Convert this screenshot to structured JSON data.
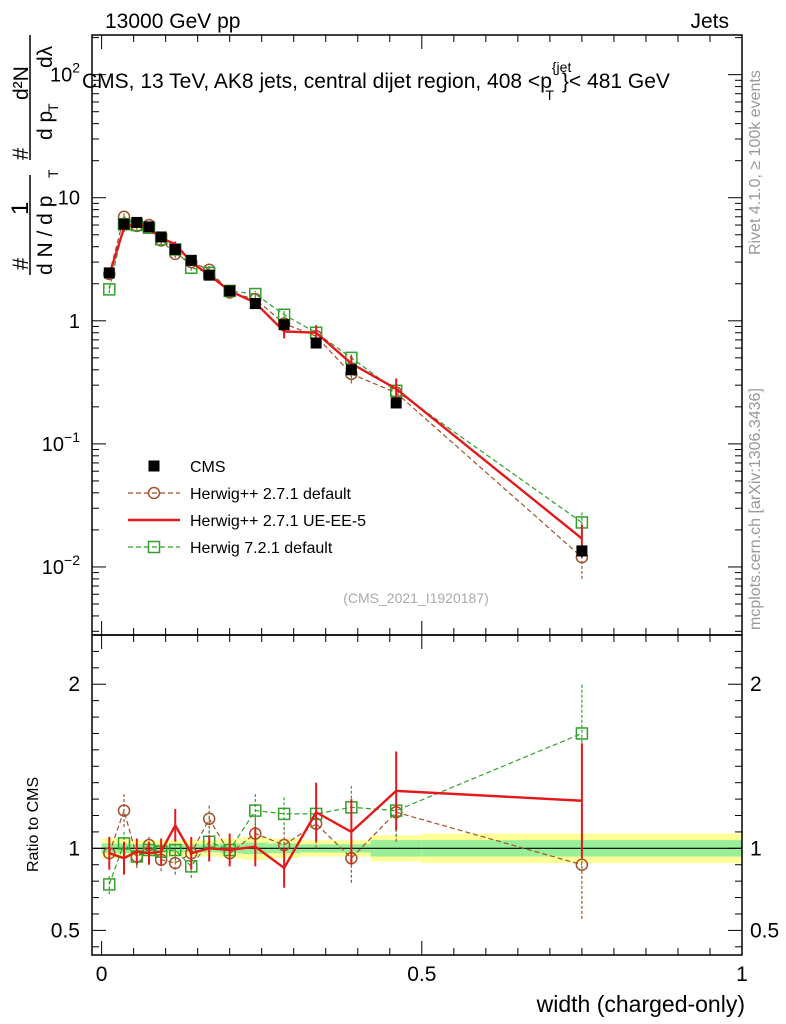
{
  "header": {
    "left": "13000 GeV pp",
    "right": "Jets"
  },
  "side_labels": {
    "rivet": "Rivet 4.1.0, ≥ 100k events",
    "mcplots": "mcplots.cern.ch [arXiv:1306.3436]"
  },
  "chart_data": {
    "type": "line",
    "title": "CMS, 13 TeV, AK8 jets, central dijet region, 408 <p",
    "title_sup": "{jet",
    "title_sub": "T",
    "title_tail": "}< 481 GeV",
    "analysis_id": "(CMS_2021_I1920187)",
    "xlabel": "width (charged-only)",
    "xlim": [
      -0.015,
      1.0
    ],
    "x_ticks": [
      {
        "value": 0,
        "label": "0"
      },
      {
        "value": 0.5,
        "label": "0.5"
      },
      {
        "value": 1,
        "label": "1"
      }
    ],
    "main_panel": {
      "yscale": "log",
      "ylim": [
        0.0028,
        210
      ],
      "ylabel_numerator": "1",
      "ylabel_denominator": "d N / d p",
      "ylabel_denominator_sub": "T",
      "ylabel_num2": "d²N",
      "ylabel_den2": "d p",
      "ylabel_den2_sub": "T",
      "ylabel_den2_tail": "dλ",
      "y_ticks": [
        {
          "value": 0.01,
          "base": "10",
          "exp": "−2"
        },
        {
          "value": 0.1,
          "base": "10",
          "exp": "−1"
        },
        {
          "value": 1,
          "base": "1",
          "exp": ""
        },
        {
          "value": 10,
          "base": "10",
          "exp": ""
        },
        {
          "value": 100,
          "base": "10",
          "exp": "2"
        }
      ]
    },
    "ratio_panel": {
      "ylabel": "Ratio to CMS",
      "ylim": [
        0.35,
        2.3
      ],
      "y_ticks": [
        {
          "value": 0.5,
          "label": "0.5"
        },
        {
          "value": 1,
          "label": "1"
        },
        {
          "value": 2,
          "label": "2"
        }
      ],
      "bands": [
        {
          "x1": 0.0,
          "x2": 0.025,
          "y1": 0.94,
          "y2": 1.06,
          "g1": 0.97,
          "g2": 1.03
        },
        {
          "x1": 0.025,
          "x2": 0.045,
          "y1": 0.94,
          "y2": 1.06,
          "g1": 0.97,
          "g2": 1.03
        },
        {
          "x1": 0.045,
          "x2": 0.065,
          "y1": 0.95,
          "y2": 1.05,
          "g1": 0.975,
          "g2": 1.025
        },
        {
          "x1": 0.065,
          "x2": 0.085,
          "y1": 0.95,
          "y2": 1.05,
          "g1": 0.975,
          "g2": 1.025
        },
        {
          "x1": 0.085,
          "x2": 0.105,
          "y1": 0.95,
          "y2": 1.05,
          "g1": 0.975,
          "g2": 1.025
        },
        {
          "x1": 0.105,
          "x2": 0.13,
          "y1": 0.95,
          "y2": 1.05,
          "g1": 0.975,
          "g2": 1.025
        },
        {
          "x1": 0.13,
          "x2": 0.155,
          "y1": 0.95,
          "y2": 1.05,
          "g1": 0.975,
          "g2": 1.025
        },
        {
          "x1": 0.155,
          "x2": 0.185,
          "y1": 0.95,
          "y2": 1.05,
          "g1": 0.975,
          "g2": 1.025
        },
        {
          "x1": 0.185,
          "x2": 0.22,
          "y1": 0.94,
          "y2": 1.06,
          "g1": 0.97,
          "g2": 1.03
        },
        {
          "x1": 0.22,
          "x2": 0.26,
          "y1": 0.93,
          "y2": 1.07,
          "g1": 0.965,
          "g2": 1.035
        },
        {
          "x1": 0.26,
          "x2": 0.31,
          "y1": 0.94,
          "y2": 1.06,
          "g1": 0.97,
          "g2": 1.03
        },
        {
          "x1": 0.31,
          "x2": 0.36,
          "y1": 0.95,
          "y2": 1.05,
          "g1": 0.975,
          "g2": 1.025
        },
        {
          "x1": 0.36,
          "x2": 0.42,
          "y1": 0.95,
          "y2": 1.05,
          "g1": 0.975,
          "g2": 1.025
        },
        {
          "x1": 0.42,
          "x2": 0.5,
          "y1": 0.92,
          "y2": 1.08,
          "g1": 0.95,
          "g2": 1.05
        },
        {
          "x1": 0.5,
          "x2": 1.0,
          "y1": 0.91,
          "y2": 1.09,
          "g1": 0.95,
          "g2": 1.05
        }
      ]
    },
    "x": [
      0.012,
      0.035,
      0.055,
      0.074,
      0.093,
      0.115,
      0.14,
      0.168,
      0.2,
      0.24,
      0.285,
      0.335,
      0.39,
      0.46,
      0.75
    ],
    "series": [
      {
        "name": "CMS",
        "style": "data",
        "color": "#000000",
        "values": [
          2.45,
          6.1,
          6.3,
          5.8,
          4.8,
          3.8,
          3.1,
          2.35,
          1.75,
          1.38,
          0.93,
          0.66,
          0.4,
          0.215,
          0.0135
        ],
        "errors": [
          0.15,
          0.3,
          0.3,
          0.25,
          0.2,
          0.15,
          0.12,
          0.1,
          0.08,
          0.07,
          0.05,
          0.04,
          0.025,
          0.015,
          0.0015
        ],
        "ratio": [
          1,
          1,
          1,
          1,
          1,
          1,
          1,
          1,
          1,
          1,
          1,
          1,
          1,
          1,
          1
        ],
        "ratio_errors": [
          0,
          0,
          0,
          0,
          0,
          0,
          0,
          0,
          0,
          0,
          0,
          0,
          0,
          0,
          0
        ]
      },
      {
        "name": "Herwig++ 2.7.1 default",
        "style": "circle",
        "color": "#a0522d",
        "values": [
          2.4,
          7.0,
          5.9,
          6.0,
          4.5,
          3.5,
          3.0,
          2.6,
          1.7,
          1.5,
          0.95,
          0.75,
          0.37,
          0.26,
          0.012
        ],
        "errors": [
          0.2,
          0.6,
          0.4,
          0.3,
          0.3,
          0.25,
          0.2,
          0.2,
          0.12,
          0.15,
          0.12,
          0.1,
          0.06,
          0.04,
          0.004
        ],
        "ratio": [
          0.97,
          1.23,
          0.95,
          1.02,
          0.93,
          0.91,
          0.97,
          1.18,
          0.97,
          1.09,
          1.02,
          1.15,
          0.94,
          1.22,
          0.9
        ],
        "ratio_errors": [
          0.08,
          0.1,
          0.07,
          0.06,
          0.07,
          0.07,
          0.08,
          0.09,
          0.07,
          0.1,
          0.12,
          0.15,
          0.15,
          0.18,
          0.33
        ]
      },
      {
        "name": "Herwig++ 2.7.1 UE-EE-5",
        "style": "line",
        "color": "#e31a1c",
        "values": [
          2.35,
          5.7,
          6.2,
          5.6,
          4.7,
          4.2,
          3.0,
          2.35,
          1.75,
          1.4,
          0.82,
          0.8,
          0.45,
          0.28,
          0.017
        ],
        "errors": [
          0.15,
          0.4,
          0.3,
          0.25,
          0.25,
          0.2,
          0.2,
          0.15,
          0.12,
          0.12,
          0.1,
          0.12,
          0.07,
          0.06,
          0.005
        ],
        "ratio": [
          0.97,
          0.94,
          0.98,
          0.97,
          0.98,
          1.14,
          0.97,
          1.0,
          0.99,
          1.01,
          0.88,
          1.22,
          1.1,
          1.35,
          1.29
        ],
        "ratio_errors": [
          0.1,
          0.1,
          0.08,
          0.07,
          0.08,
          0.1,
          0.1,
          0.08,
          0.1,
          0.12,
          0.12,
          0.18,
          0.2,
          0.24,
          0.35
        ]
      },
      {
        "name": "Herwig 7.2.1 default",
        "style": "square",
        "color": "#33a02c",
        "values": [
          1.8,
          6.1,
          6.0,
          5.7,
          4.6,
          3.8,
          2.7,
          2.45,
          1.75,
          1.65,
          1.12,
          0.8,
          0.5,
          0.27,
          0.023
        ],
        "errors": [
          0.12,
          0.3,
          0.3,
          0.2,
          0.2,
          0.15,
          0.15,
          0.12,
          0.1,
          0.1,
          0.08,
          0.07,
          0.04,
          0.03,
          0.005
        ],
        "ratio": [
          0.78,
          1.03,
          0.95,
          0.99,
          0.98,
          0.99,
          0.89,
          1.04,
          0.99,
          1.23,
          1.21,
          1.21,
          1.25,
          1.23,
          1.7
        ],
        "ratio_errors": [
          0.06,
          0.07,
          0.06,
          0.06,
          0.06,
          0.07,
          0.07,
          0.07,
          0.08,
          0.1,
          0.1,
          0.12,
          0.13,
          0.16,
          0.3
        ]
      }
    ]
  }
}
